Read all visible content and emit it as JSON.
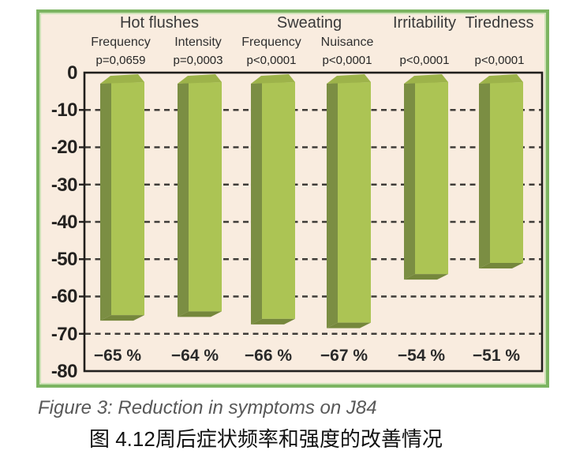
{
  "chart_data": {
    "type": "bar",
    "title": "",
    "style": "3d-columns-negative",
    "groups": [
      {
        "text": "Hot flushes"
      },
      {
        "text": "Sweating"
      },
      {
        "text": "Irritability"
      },
      {
        "text": "Tiredness"
      }
    ],
    "columns": [
      {
        "group": "Hot flushes",
        "label": "Frequency",
        "p_value": "p=0,0659",
        "value": -65,
        "value_label": "−65 %"
      },
      {
        "group": "Hot flushes",
        "label": "Intensity",
        "p_value": "p=0,0003",
        "value": -64,
        "value_label": "−64 %"
      },
      {
        "group": "Sweating",
        "label": "Frequency",
        "p_value": "p<0,0001",
        "value": -66,
        "value_label": "−66 %"
      },
      {
        "group": "Sweating",
        "label": "Nuisance",
        "p_value": "p<0,0001",
        "value": -67,
        "value_label": "−67 %"
      },
      {
        "group": "Irritability",
        "label": "",
        "p_value": "p<0,0001",
        "value": -54,
        "value_label": "−54 %"
      },
      {
        "group": "Tiredness",
        "label": "",
        "p_value": "p<0,0001",
        "value": -51,
        "value_label": "−51 %"
      }
    ],
    "y_axis": {
      "range": [
        0,
        -80
      ],
      "ticks": [
        0,
        -10,
        -20,
        -30,
        -40,
        -50,
        -60,
        -70,
        -80
      ],
      "tick_labels": [
        "0",
        "-10",
        "-20",
        "-30",
        "-40",
        "-50",
        "-60",
        "-70",
        "-80"
      ]
    },
    "unit": "%",
    "grid": "dashed horizontal",
    "legend": "none",
    "colors": {
      "bar_front": "#acc454",
      "bar_side": "#7b8e43",
      "bar_top": "#9db34a",
      "bar_bottom": "#75873c",
      "panel_background": "#f9ecdf",
      "panel_border": "#7cb461",
      "axis": "#211f1d",
      "gridline": "#3f3c38"
    }
  },
  "captions": {
    "english": "Figure 3: Reduction in symptoms on J84",
    "chinese": "图 4.12周后症状频率和强度的改善情况"
  }
}
